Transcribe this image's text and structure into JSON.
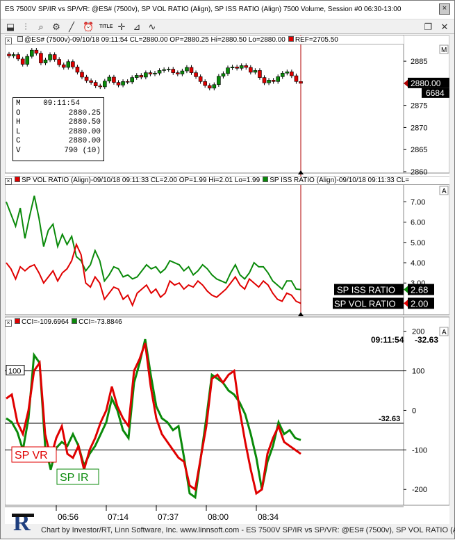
{
  "window": {
    "title": "ES 7500V SP/IR vs SP/VR: @ES# (7500v), SP VOL RATIO (Align), SP ISS RATIO (Align) 7500 Volume, Session #0 06:30-13:00",
    "close_label": "×"
  },
  "toolbar": {
    "icons": [
      "pointer-icon",
      "bar-chart-icon",
      "zoom-icon",
      "gear-icon",
      "draw-line-icon",
      "alarm-icon",
      "title-icon",
      "crosshair-icon",
      "drawing-tools-icon",
      "wave-icon"
    ],
    "title_label": "TITLE",
    "restore_glyph": "❐",
    "close_glyph": "✕"
  },
  "pane1": {
    "header": "@ES# (7500v)-09/10/18 09:11:54 CL=2880.00 OP=2880.25 Hi=2880.50 Lo=2880.00",
    "ref": "REF=2705.50",
    "badge": "M",
    "last_price": "2880.00",
    "volume_badge": "6684",
    "yticks": [
      "2885",
      "2880",
      "2875",
      "2870",
      "2865",
      "2860"
    ],
    "info": [
      {
        "k": "M",
        "v": "09:11:54"
      },
      {
        "k": "O",
        "v": "2880.25"
      },
      {
        "k": "H",
        "v": "2880.50"
      },
      {
        "k": "L",
        "v": "2880.00"
      },
      {
        "k": "C",
        "v": "2880.00"
      },
      {
        "k": "V",
        "v": "790 (10)"
      }
    ]
  },
  "pane2": {
    "header_vol": "SP VOL RATIO (Align)-09/10/18 09:11:33 CL=2.00 OP=1.99 Hi=2.01 Lo=1.99",
    "header_iss": "SP ISS RATIO (Align)-09/10/18 09:11:33 CL=",
    "badge": "A",
    "yticks": [
      "7.00",
      "6.00",
      "5.00",
      "4.00",
      "3.00"
    ],
    "iss_label": "SP ISS RATIO",
    "iss_value": "2.68",
    "vol_label": "SP VOL RATIO",
    "vol_value": "2.00"
  },
  "pane3": {
    "header_cci1": "CCI=-109.6964",
    "header_cci2": "CCI=-73.8846",
    "badge": "A",
    "yticks": [
      "200",
      "100",
      "0",
      "-100",
      "-200"
    ],
    "time_readout": "09:11:54",
    "value_readout": "-32.63",
    "level_label": "100",
    "cursor_value": "-32.63",
    "label_vr": "SP VR",
    "label_ir": "SP IR"
  },
  "xaxis": {
    "ticks": [
      "06:56",
      "07:14",
      "07:37",
      "08:00",
      "08:34"
    ]
  },
  "footer": {
    "text": "Chart by Investor/RT, Linn Software, Inc. www.linnsoft.com - ES 7500V SP/IR vs SP/VR: @ES# (7500v), SP VOL RATIO (A"
  },
  "colors": {
    "red": "#e00000",
    "green": "#0a8a0a",
    "cursor": "#b00000",
    "label_bg": "#000000"
  },
  "chart_data": [
    {
      "type": "candlestick",
      "title": "@ES# (7500v)",
      "ylim": [
        2860,
        2888
      ],
      "close": [
        2886.2,
        2886.5,
        2885.5,
        2884.3,
        2886.1,
        2887.5,
        2886.8,
        2884.6,
        2885.3,
        2886.5,
        2885.4,
        2884.2,
        2883.6,
        2884.9,
        2883.7,
        2882.5,
        2881.4,
        2880.6,
        2880.2,
        2879.4,
        2879.2,
        2880.5,
        2881.4,
        2880.2,
        2879.6,
        2880.4,
        2880.3,
        2881.3,
        2881.8,
        2881.4,
        2882.4,
        2882.1,
        2882.3,
        2882.9,
        2883.1,
        2883.2,
        2882.4,
        2882.1,
        2882.8,
        2883.6,
        2882.4,
        2881.5,
        2880.4,
        2879.5,
        2878.9,
        2879.7,
        2881.6,
        2882.2,
        2883.5,
        2883.7,
        2883.4,
        2884.0,
        2883.6,
        2882.5,
        2882.9,
        2881.3,
        2880.1,
        2880.7,
        2880.4,
        2881.5,
        2882.3,
        2882.6,
        2881.7,
        2880.4,
        2880.0
      ]
    },
    {
      "type": "line",
      "ylim": [
        1.5,
        7.6
      ],
      "series": [
        {
          "name": "SP ISS RATIO",
          "values": [
            7.0,
            6.4,
            5.8,
            6.7,
            5.2,
            6.3,
            7.3,
            6.2,
            4.8,
            5.6,
            5.9,
            4.8,
            5.4,
            4.9,
            5.3,
            4.3,
            4.1,
            3.6,
            3.9,
            4.6,
            4.1,
            3.1,
            3.4,
            3.8,
            3.7,
            3.3,
            3.4,
            3.2,
            3.3,
            3.6,
            3.9,
            3.7,
            3.8,
            3.5,
            3.7,
            4.1,
            4.0,
            3.9,
            3.6,
            3.8,
            3.4,
            3.6,
            3.9,
            3.7,
            3.4,
            3.2,
            3.1,
            3.0,
            3.5,
            3.9,
            3.4,
            3.2,
            3.5,
            4.0,
            3.8,
            3.8,
            3.5,
            3.1,
            2.9,
            2.7,
            3.1,
            3.1,
            2.7,
            2.68
          ]
        },
        {
          "name": "SP VOL RATIO",
          "values": [
            4.0,
            3.7,
            3.2,
            3.8,
            3.6,
            3.8,
            3.9,
            3.5,
            3.0,
            3.3,
            3.6,
            3.1,
            3.5,
            3.7,
            4.1,
            4.9,
            4.4,
            3.0,
            2.8,
            3.3,
            3.0,
            2.2,
            2.5,
            2.8,
            2.7,
            2.2,
            2.4,
            1.9,
            2.5,
            2.7,
            2.9,
            2.5,
            2.7,
            2.3,
            2.5,
            3.1,
            2.9,
            3.0,
            2.7,
            2.9,
            2.8,
            3.1,
            2.9,
            2.6,
            2.4,
            2.3,
            2.5,
            2.7,
            3.0,
            3.3,
            2.9,
            2.7,
            3.2,
            3.0,
            2.8,
            3.1,
            2.9,
            2.5,
            2.2,
            2.1,
            2.5,
            2.4,
            2.1,
            2.0
          ]
        }
      ]
    },
    {
      "type": "line",
      "ylim": [
        -240,
        210
      ],
      "levels": [
        100,
        -32.63,
        -100
      ],
      "series": [
        {
          "name": "SP IR",
          "values": [
            -20,
            -30,
            -55,
            -100,
            -20,
            140,
            120,
            -90,
            -150,
            -95,
            -80,
            -90,
            -60,
            -90,
            -140,
            -110,
            -90,
            -60,
            -30,
            30,
            0,
            -50,
            -70,
            70,
            120,
            180,
            90,
            10,
            -20,
            -30,
            -50,
            -40,
            -120,
            -210,
            -220,
            -120,
            -20,
            90,
            80,
            70,
            50,
            40,
            20,
            -10,
            -60,
            -120,
            -200,
            -130,
            -90,
            -30,
            -60,
            -50,
            -70,
            -75
          ]
        },
        {
          "name": "SP VR",
          "values": [
            30,
            40,
            -30,
            -60,
            0,
            100,
            120,
            -60,
            -120,
            -70,
            -40,
            -110,
            -120,
            -90,
            -150,
            -100,
            -70,
            -30,
            0,
            60,
            10,
            -20,
            -40,
            100,
            130,
            170,
            60,
            -20,
            -60,
            -80,
            -100,
            -120,
            -130,
            -190,
            -200,
            -120,
            -40,
            80,
            90,
            70,
            90,
            100,
            0,
            -80,
            -150,
            -210,
            -200,
            -110,
            -70,
            -40,
            -80,
            -90,
            -100,
            -110
          ]
        }
      ]
    }
  ]
}
